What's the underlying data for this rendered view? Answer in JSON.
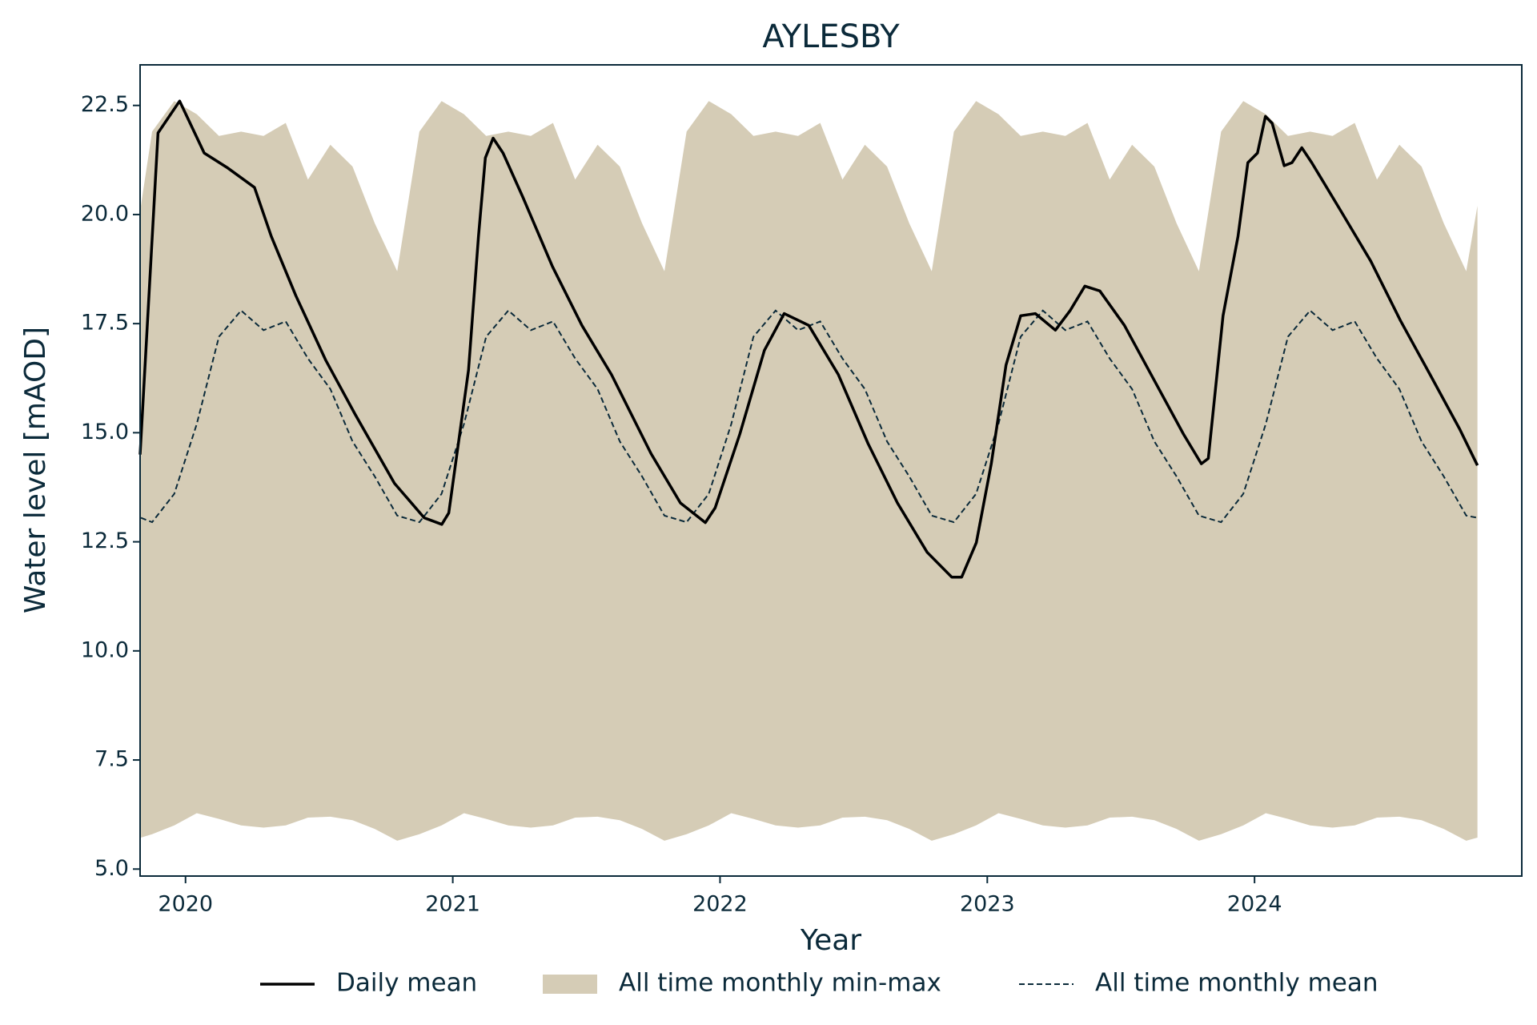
{
  "chart_data": {
    "type": "line",
    "title": "AYLESBY",
    "xlabel": "Year",
    "ylabel": "Water level [mAOD]",
    "xlim": [
      2019.83,
      2025.0
    ],
    "xticks": [
      2020,
      2021,
      2022,
      2023,
      2024
    ],
    "ylim": [
      4.84,
      23.43
    ],
    "yticks": [
      {
        "value": 5,
        "label": "5.0"
      },
      {
        "value": 7.5,
        "label": "7.5"
      },
      {
        "value": 10,
        "label": "10.0"
      },
      {
        "value": 12.5,
        "label": "12.5"
      },
      {
        "value": 15,
        "label": "15.0"
      },
      {
        "value": 17.5,
        "label": "17.5"
      },
      {
        "value": 20,
        "label": "20.0"
      },
      {
        "value": 22.5,
        "label": "22.5"
      }
    ],
    "x": [
      2019.833,
      2019.875,
      2019.958,
      2020.042,
      2020.125,
      2020.208,
      2020.292,
      2020.375,
      2020.458,
      2020.542,
      2020.625,
      2020.708,
      2020.792,
      2020.875,
      2020.958,
      2021.042,
      2021.125,
      2021.208,
      2021.292,
      2021.375,
      2021.458,
      2021.542,
      2021.625,
      2021.708,
      2021.792,
      2021.875,
      2021.958,
      2022.042,
      2022.125,
      2022.208,
      2022.292,
      2022.375,
      2022.458,
      2022.542,
      2022.625,
      2022.708,
      2022.792,
      2022.875,
      2022.958,
      2023.042,
      2023.125,
      2023.208,
      2023.292,
      2023.375,
      2023.458,
      2023.542,
      2023.625,
      2023.708,
      2023.792,
      2023.875,
      2023.958,
      2024.042,
      2024.125,
      2024.208,
      2024.292,
      2024.375,
      2024.458,
      2024.542,
      2024.625,
      2024.708,
      2024.792,
      2024.834
    ],
    "legend": "below",
    "series": [
      {
        "name": "Daily mean",
        "color": "#000000",
        "style": "solid",
        "x": [
          2019.83,
          2019.897,
          2019.978,
          2020.07,
          2020.155,
          2020.258,
          2020.321,
          2020.413,
          2020.524,
          2020.635,
          2020.782,
          2020.893,
          2020.959,
          2020.985,
          2021.059,
          2021.096,
          2021.122,
          2021.151,
          2021.188,
          2021.262,
          2021.373,
          2021.483,
          2021.594,
          2021.742,
          2021.852,
          2021.945,
          2021.982,
          2022.074,
          2022.166,
          2022.24,
          2022.332,
          2022.443,
          2022.554,
          2022.664,
          2022.775,
          2022.867,
          2022.904,
          2022.959,
          2023.015,
          2023.07,
          2023.125,
          2023.18,
          2023.255,
          2023.31,
          2023.365,
          2023.421,
          2023.513,
          2023.624,
          2023.734,
          2023.801,
          2023.827,
          2023.882,
          2023.938,
          2023.975,
          2024.011,
          2024.041,
          2024.066,
          2024.111,
          2024.14,
          2024.177,
          2024.214,
          2024.325,
          2024.435,
          2024.546,
          2024.657,
          2024.768,
          2024.834
        ],
        "values": [
          14.5,
          21.87,
          22.6,
          21.41,
          21.08,
          20.62,
          19.5,
          18.14,
          16.67,
          15.42,
          13.84,
          13.05,
          12.9,
          13.16,
          16.44,
          19.5,
          21.3,
          21.75,
          21.41,
          20.4,
          18.81,
          17.46,
          16.33,
          14.52,
          13.39,
          12.94,
          13.28,
          14.97,
          16.89,
          17.73,
          17.46,
          16.33,
          14.75,
          13.39,
          12.26,
          11.69,
          11.69,
          12.48,
          14.29,
          16.55,
          17.68,
          17.73,
          17.35,
          17.8,
          18.36,
          18.25,
          17.46,
          16.21,
          14.97,
          14.29,
          14.41,
          17.68,
          19.5,
          21.19,
          21.41,
          22.25,
          22.09,
          21.12,
          21.19,
          21.53,
          21.19,
          20.06,
          18.93,
          17.57,
          16.33,
          15.08,
          14.25
        ]
      },
      {
        "name": "All time monthly min-max",
        "color": "#d5ccb6",
        "style": "band",
        "low": [
          5.72,
          5.8,
          6.0,
          6.28,
          6.15,
          6.0,
          5.95,
          6.0,
          6.18,
          6.2,
          6.12,
          5.92,
          5.65,
          5.8,
          6.0,
          6.28,
          6.15,
          6.0,
          5.95,
          6.0,
          6.18,
          6.2,
          6.12,
          5.92,
          5.65,
          5.8,
          6.0,
          6.28,
          6.15,
          6.0,
          5.95,
          6.0,
          6.18,
          6.2,
          6.12,
          5.92,
          5.65,
          5.8,
          6.0,
          6.28,
          6.15,
          6.0,
          5.95,
          6.0,
          6.18,
          6.2,
          6.12,
          5.92,
          5.65,
          5.8,
          6.0,
          6.28,
          6.15,
          6.0,
          5.95,
          6.0,
          6.18,
          6.2,
          6.12,
          5.92,
          5.65,
          5.72
        ],
        "high": [
          20.2,
          21.9,
          22.6,
          22.3,
          21.8,
          21.9,
          21.8,
          22.1,
          20.8,
          21.6,
          21.1,
          19.8,
          18.7,
          21.9,
          22.6,
          22.3,
          21.8,
          21.9,
          21.8,
          22.1,
          20.8,
          21.6,
          21.1,
          19.8,
          18.7,
          21.9,
          22.6,
          22.3,
          21.8,
          21.9,
          21.8,
          22.1,
          20.8,
          21.6,
          21.1,
          19.8,
          18.7,
          21.9,
          22.6,
          22.3,
          21.8,
          21.9,
          21.8,
          22.1,
          20.8,
          21.6,
          21.1,
          19.8,
          18.7,
          21.9,
          22.6,
          22.3,
          21.8,
          21.9,
          21.8,
          22.1,
          20.8,
          21.6,
          21.1,
          19.8,
          18.7,
          20.2
        ]
      },
      {
        "name": "All time monthly mean",
        "color": "#0b2a3a",
        "style": "dashed",
        "values": [
          13.05,
          12.95,
          13.6,
          15.2,
          17.2,
          17.8,
          17.35,
          17.55,
          16.7,
          16.0,
          14.8,
          14.0,
          13.1,
          12.95,
          13.6,
          15.2,
          17.2,
          17.8,
          17.35,
          17.55,
          16.7,
          16.0,
          14.8,
          14.0,
          13.1,
          12.95,
          13.6,
          15.2,
          17.2,
          17.8,
          17.35,
          17.55,
          16.7,
          16.0,
          14.8,
          14.0,
          13.1,
          12.95,
          13.6,
          15.2,
          17.2,
          17.8,
          17.35,
          17.55,
          16.7,
          16.0,
          14.8,
          14.0,
          13.1,
          12.95,
          13.6,
          15.2,
          17.2,
          17.8,
          17.35,
          17.55,
          16.7,
          16.0,
          14.8,
          14.0,
          13.1,
          13.05
        ]
      }
    ]
  }
}
